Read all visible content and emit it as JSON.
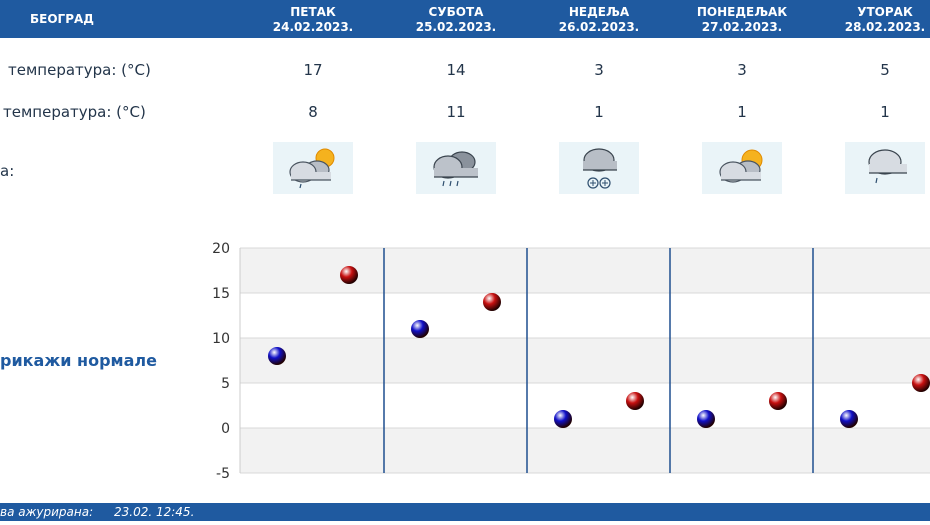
{
  "header": {
    "city": "БЕОГРАД",
    "days": [
      {
        "name": "ПЕТАК",
        "date": "24.02.2023."
      },
      {
        "name": "СУБОТА",
        "date": "25.02.2023."
      },
      {
        "name": "НЕДЕЉА",
        "date": "26.02.2023."
      },
      {
        "name": "ПОНЕДЕЉАК",
        "date": "27.02.2023."
      },
      {
        "name": "УТОРАК",
        "date": "28.02.2023."
      }
    ]
  },
  "rows": {
    "max_label": "температура: (°C)",
    "min_label": "температура: (°C)",
    "weather_label": "а:",
    "max_values": [
      "17",
      "14",
      "3",
      "3",
      "5"
    ],
    "min_values": [
      "8",
      "11",
      "1",
      "1",
      "1"
    ],
    "icons": [
      "cloud-sun-rain-icon",
      "cloud-rain-icon",
      "cloud-snow-icon",
      "cloud-sun-icon",
      "cloud-light-rain-icon"
    ]
  },
  "normals": {
    "label": "рикажи нормале"
  },
  "chart_data": {
    "type": "scatter",
    "categories": [
      "ПЕТАК",
      "СУБОТА",
      "НЕДЕЉА",
      "ПОНЕДЕЉАК",
      "УТОРАК"
    ],
    "ylim": [
      -5,
      20
    ],
    "yticks": [
      "20",
      "15",
      "10",
      "5",
      "0",
      "-5"
    ],
    "series": [
      {
        "values": [
          8,
          11,
          1,
          1,
          1
        ],
        "color": "#1010c8"
      },
      {
        "values": [
          17,
          14,
          3,
          3,
          5
        ],
        "color": "#c81010"
      }
    ]
  },
  "footer": {
    "label": "ва ажурирана:",
    "time": "23.02. 12:45."
  }
}
